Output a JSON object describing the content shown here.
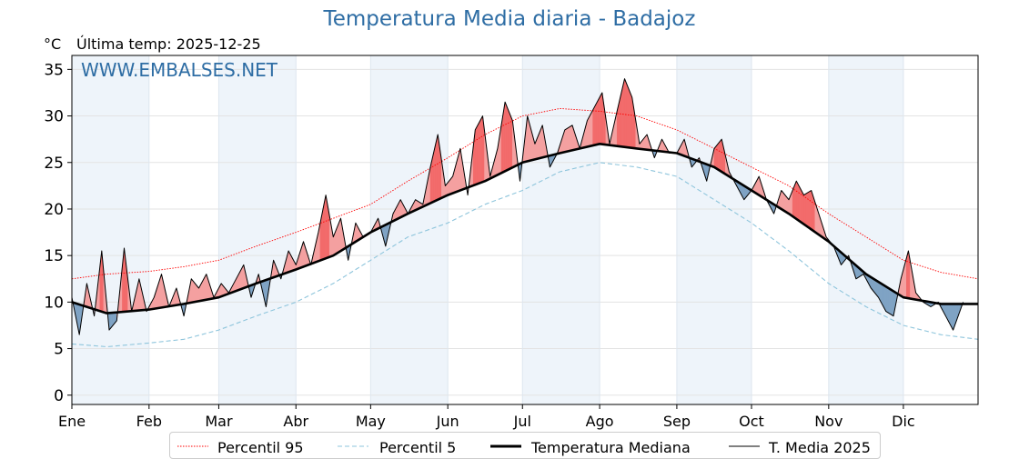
{
  "title": "Temperatura Media diaria - Badajoz",
  "unit": "°C",
  "last_temp_label": "Última temp: 2025-12-25",
  "watermark": "WWW.EMBALSES.NET",
  "colors": {
    "title": "#2e6da4",
    "p95": "#ff0000",
    "p5": "#8ec5dc",
    "median": "#000000",
    "current": "#000000",
    "above_fill": "#f4a0a0",
    "above_fill_strong": "#f26b6b",
    "below_fill": "#7fa3c4",
    "band": "#eef4fa"
  },
  "legend": [
    {
      "key": "p95",
      "label": "Percentil 95"
    },
    {
      "key": "p5",
      "label": "Percentil 5"
    },
    {
      "key": "median",
      "label": "Temperatura Mediana"
    },
    {
      "key": "current",
      "label": "T. Media 2025"
    }
  ],
  "chart_data": {
    "type": "line",
    "title": "Temperatura Media diaria - Badajoz",
    "ylabel": "°C",
    "xlabel": "",
    "ylim": [
      -1,
      36.5
    ],
    "xlim": [
      1,
      365
    ],
    "yticks": [
      0,
      5,
      10,
      15,
      20,
      25,
      30,
      35
    ],
    "xticks": [
      {
        "label": "Ene",
        "day": 1
      },
      {
        "label": "Feb",
        "day": 32
      },
      {
        "label": "Mar",
        "day": 60
      },
      {
        "label": "Abr",
        "day": 91
      },
      {
        "label": "May",
        "day": 121
      },
      {
        "label": "Jun",
        "day": 152
      },
      {
        "label": "Jul",
        "day": 182
      },
      {
        "label": "Ago",
        "day": 213
      },
      {
        "label": "Sep",
        "day": 244
      },
      {
        "label": "Oct",
        "day": 274
      },
      {
        "label": "Nov",
        "day": 305
      },
      {
        "label": "Dic",
        "day": 335
      }
    ],
    "month_bands": [
      [
        1,
        32
      ],
      [
        60,
        91
      ],
      [
        121,
        152
      ],
      [
        182,
        213
      ],
      [
        244,
        274
      ],
      [
        305,
        335
      ]
    ],
    "grid": true,
    "legend_position": "bottom",
    "series": [
      {
        "name": "Percentil 95",
        "style": "dotted",
        "color": "#ff0000",
        "x": [
          1,
          15,
          32,
          46,
          60,
          75,
          91,
          106,
          121,
          136,
          152,
          167,
          182,
          197,
          213,
          228,
          244,
          259,
          274,
          289,
          305,
          320,
          335,
          350,
          365
        ],
        "y": [
          12.5,
          13.0,
          13.3,
          13.8,
          14.5,
          16.0,
          17.5,
          19.0,
          20.5,
          23.0,
          25.5,
          28.0,
          30.0,
          30.8,
          30.5,
          30.0,
          28.5,
          26.5,
          24.5,
          22.5,
          19.5,
          17.0,
          14.5,
          13.2,
          12.5
        ]
      },
      {
        "name": "Percentil 5",
        "style": "dashed",
        "color": "#8ec5dc",
        "x": [
          1,
          15,
          32,
          46,
          60,
          75,
          91,
          106,
          121,
          136,
          152,
          167,
          182,
          197,
          213,
          228,
          244,
          259,
          274,
          289,
          305,
          320,
          335,
          350,
          365
        ],
        "y": [
          5.5,
          5.2,
          5.6,
          6.0,
          7.0,
          8.5,
          10.0,
          12.0,
          14.5,
          17.0,
          18.5,
          20.5,
          22.0,
          24.0,
          25.0,
          24.5,
          23.5,
          21.0,
          18.5,
          15.5,
          12.0,
          9.5,
          7.5,
          6.5,
          6.0
        ]
      },
      {
        "name": "Temperatura Mediana",
        "style": "solid-thick",
        "color": "#000000",
        "x": [
          1,
          15,
          32,
          46,
          60,
          75,
          91,
          106,
          121,
          136,
          152,
          167,
          182,
          197,
          213,
          228,
          244,
          259,
          274,
          289,
          305,
          320,
          335,
          350,
          365
        ],
        "y": [
          10.0,
          8.8,
          9.2,
          9.8,
          10.5,
          12.0,
          13.5,
          15.0,
          17.5,
          19.5,
          21.5,
          23.0,
          25.0,
          26.0,
          27.0,
          26.5,
          26.0,
          24.5,
          22.0,
          19.5,
          16.5,
          13.0,
          10.5,
          9.8,
          9.8
        ]
      },
      {
        "name": "T. Media 2025",
        "style": "solid-thin",
        "color": "#000000",
        "x": [
          1,
          4,
          7,
          10,
          13,
          16,
          19,
          22,
          25,
          28,
          31,
          34,
          37,
          40,
          43,
          46,
          49,
          52,
          55,
          58,
          61,
          64,
          67,
          70,
          73,
          76,
          79,
          82,
          85,
          88,
          91,
          94,
          97,
          100,
          103,
          106,
          109,
          112,
          115,
          118,
          121,
          124,
          127,
          130,
          133,
          136,
          139,
          142,
          145,
          148,
          151,
          154,
          157,
          160,
          163,
          166,
          169,
          172,
          175,
          178,
          181,
          184,
          187,
          190,
          193,
          196,
          199,
          202,
          205,
          208,
          211,
          214,
          217,
          220,
          223,
          226,
          229,
          232,
          235,
          238,
          241,
          244,
          247,
          250,
          253,
          256,
          259,
          262,
          265,
          268,
          271,
          274,
          277,
          280,
          283,
          286,
          289,
          292,
          295,
          298,
          301,
          304,
          307,
          310,
          313,
          316,
          319,
          322,
          325,
          328,
          331,
          334,
          337,
          340,
          343,
          346,
          349,
          352,
          355,
          359
        ],
        "y": [
          10.5,
          6.5,
          12.0,
          8.5,
          15.5,
          7.0,
          8.0,
          15.8,
          9.0,
          12.5,
          9.0,
          10.5,
          13.0,
          9.5,
          11.5,
          8.5,
          12.5,
          11.5,
          13.0,
          10.5,
          12.0,
          11.0,
          12.5,
          14.0,
          10.5,
          13.0,
          9.5,
          14.5,
          12.5,
          15.5,
          14.0,
          16.5,
          14.0,
          17.5,
          21.5,
          17.0,
          19.0,
          14.5,
          18.5,
          17.0,
          17.5,
          19.0,
          16.0,
          19.5,
          21.0,
          19.5,
          21.0,
          20.5,
          24.5,
          28.0,
          22.5,
          23.5,
          26.5,
          21.5,
          28.5,
          30.0,
          23.5,
          26.5,
          31.5,
          29.5,
          23.0,
          30.0,
          27.0,
          29.0,
          24.5,
          26.0,
          28.5,
          29.0,
          26.5,
          29.5,
          31.0,
          32.5,
          27.0,
          30.5,
          34.0,
          32.0,
          27.0,
          28.0,
          25.5,
          27.5,
          26.0,
          26.0,
          27.5,
          24.5,
          25.5,
          23.0,
          26.5,
          27.5,
          24.0,
          22.5,
          21.0,
          22.0,
          23.5,
          21.0,
          19.5,
          22.0,
          21.0,
          23.0,
          21.5,
          22.0,
          19.5,
          17.0,
          16.0,
          14.0,
          15.0,
          12.5,
          13.0,
          11.5,
          10.5,
          9.0,
          8.5,
          12.5,
          15.5,
          11.0,
          10.0,
          9.5,
          10.0,
          8.5,
          7.0,
          10.0
        ]
      }
    ]
  }
}
